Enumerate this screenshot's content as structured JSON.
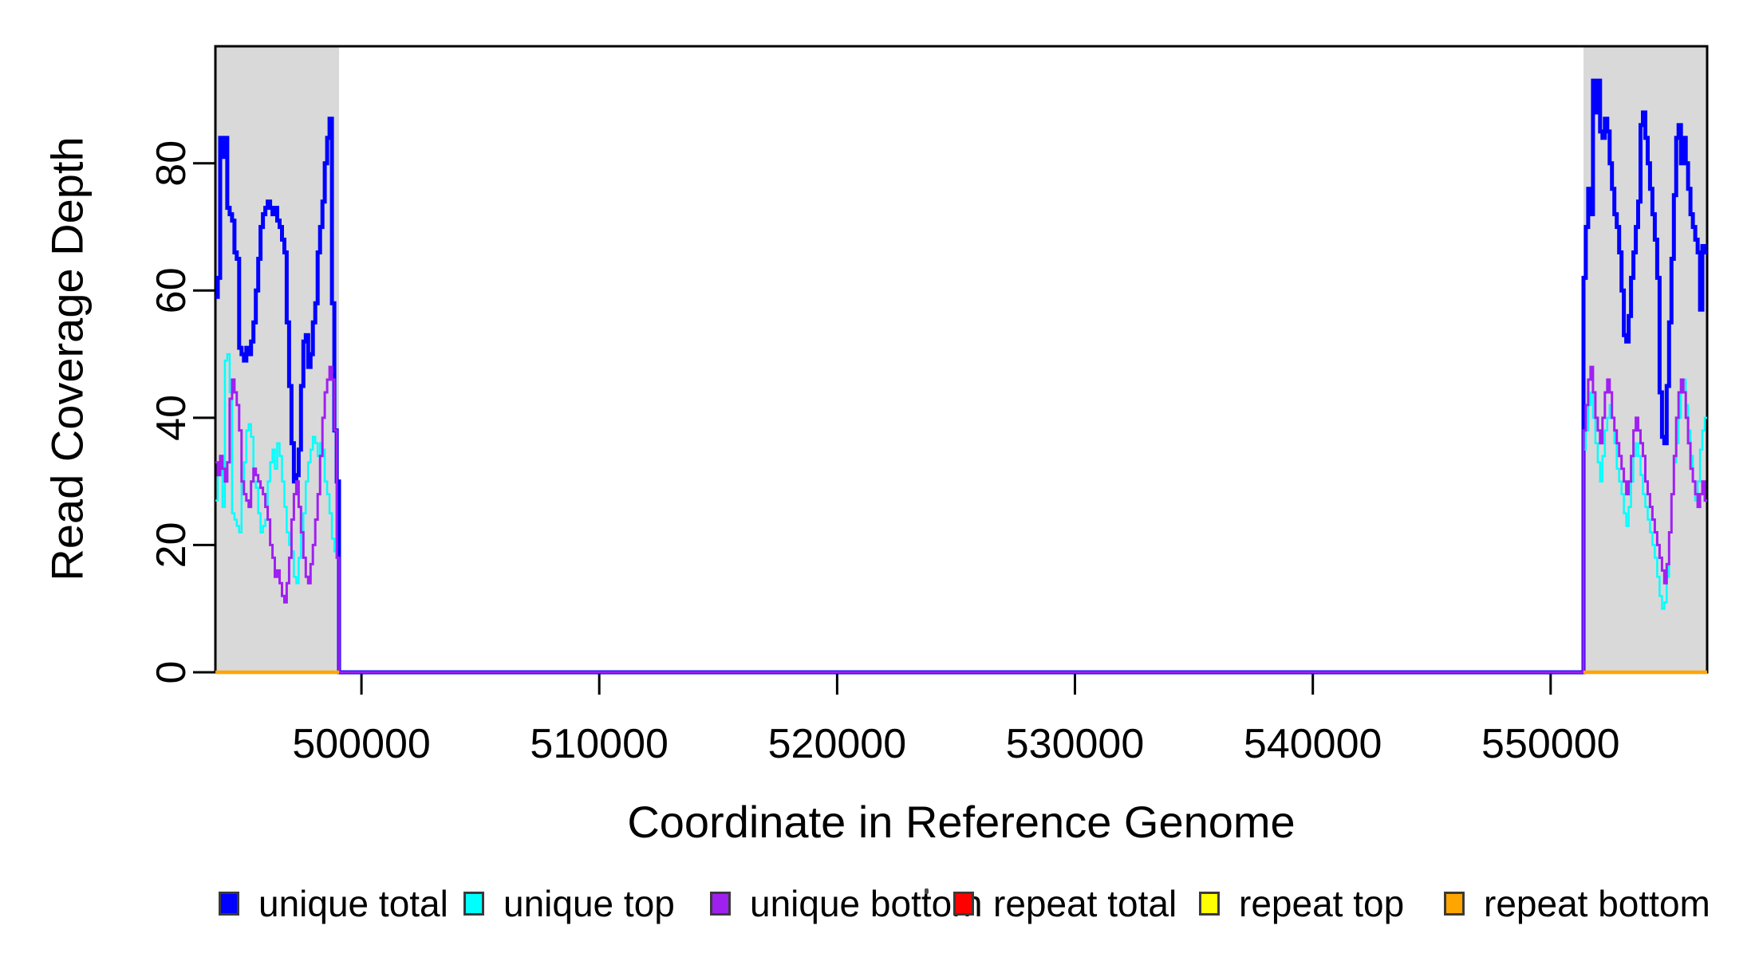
{
  "figure": {
    "background": "#ffffff"
  },
  "colors": {
    "axis": "#000000",
    "text": "#000000",
    "shaded_region": "#d9d9d9"
  },
  "legend": {
    "items": [
      {
        "label": "unique total",
        "color": "#0000ff"
      },
      {
        "label": "unique top",
        "color": "#00ffff"
      },
      {
        "label": "unique bottom",
        "color": "#a020f0"
      },
      {
        "label": "repeat total",
        "color": "#ff0000"
      },
      {
        "label": "repeat top",
        "color": "#ffff00"
      },
      {
        "label": "repeat bottom",
        "color": "#ffa500"
      }
    ]
  },
  "chart_data": {
    "type": "line",
    "subtype": "step",
    "title": "",
    "xlabel": "Coordinate in Reference Genome",
    "ylabel": "Read Coverage Depth",
    "xlim": [
      493860,
      556580
    ],
    "ylim": [
      0,
      98.4
    ],
    "xticks": [
      500000,
      510000,
      520000,
      530000,
      540000,
      550000
    ],
    "yticks": [
      0,
      20,
      40,
      60,
      80
    ],
    "grid": false,
    "legend_position": "bottom",
    "shaded_regions": [
      {
        "name": "left-data-block",
        "x0": 493860,
        "x1": 499060,
        "color": "#d9d9d9"
      },
      {
        "name": "right-data-block",
        "x0": 551380,
        "x1": 556580,
        "color": "#d9d9d9"
      }
    ],
    "series": [
      {
        "name": "unique total",
        "color": "#0000ff",
        "lw": 5,
        "segments": [
          {
            "x0": 493860,
            "dx": 100,
            "values": [
              59,
              62,
              84,
              81,
              84,
              73,
              72,
              71,
              66,
              65,
              51,
              50,
              49,
              51,
              50,
              52,
              55,
              60,
              65,
              70,
              72,
              73,
              74,
              73,
              72,
              73,
              71,
              70,
              68,
              66,
              55,
              45,
              36,
              30,
              31,
              35,
              45,
              52,
              53,
              48,
              50,
              55,
              58,
              66,
              70,
              74,
              80,
              84,
              87,
              58,
              38,
              30
            ]
          },
          {
            "x0": 499060,
            "x1": 551380,
            "const": 0
          },
          {
            "x0": 551380,
            "dx": 100,
            "values": [
              62,
              70,
              76,
              72,
              93,
              88,
              93,
              85,
              84,
              87,
              85,
              80,
              76,
              72,
              70,
              66,
              60,
              53,
              52,
              56,
              62,
              66,
              70,
              74,
              86,
              88,
              84,
              80,
              76,
              72,
              68,
              62,
              44,
              37,
              36,
              45,
              55,
              65,
              75,
              84,
              86,
              80,
              84,
              80,
              76,
              72,
              70,
              68,
              66,
              57,
              67,
              66
            ]
          }
        ]
      },
      {
        "name": "unique top",
        "color": "#00ffff",
        "lw": 2.5,
        "segments": [
          {
            "x0": 493860,
            "dx": 100,
            "values": [
              27,
              33,
              34,
              26,
              49,
              50,
              44,
              25,
              24,
              23,
              22,
              30,
              33,
              38,
              39,
              37,
              30,
              29,
              25,
              22,
              23,
              24,
              30,
              33,
              35,
              32,
              36,
              34,
              30,
              26,
              22,
              20,
              19,
              15,
              14,
              18,
              22,
              25,
              30,
              33,
              35,
              37,
              36,
              34,
              36,
              35,
              30,
              28,
              25,
              21,
              19,
              18
            ]
          },
          {
            "x0": 499060,
            "x1": 551380,
            "const": 0
          },
          {
            "x0": 551380,
            "dx": 100,
            "values": [
              35,
              38,
              42,
              44,
              40,
              36,
              33,
              30,
              34,
              38,
              40,
              42,
              40,
              36,
              32,
              30,
              28,
              25,
              23,
              26,
              30,
              34,
              36,
              34,
              31,
              28,
              26,
              24,
              22,
              20,
              18,
              15,
              12,
              10,
              11,
              15,
              22,
              28,
              33,
              36,
              40,
              44,
              46,
              42,
              38,
              34,
              30,
              27,
              30,
              35,
              38,
              40
            ]
          }
        ]
      },
      {
        "name": "unique bottom",
        "color": "#a020f0",
        "lw": 3,
        "segments": [
          {
            "x0": 493860,
            "dx": 100,
            "values": [
              33,
              31,
              34,
              32,
              30,
              33,
              43,
              46,
              44,
              42,
              38,
              30,
              28,
              27,
              26,
              30,
              32,
              31,
              30,
              29,
              28,
              26,
              24,
              20,
              18,
              15,
              16,
              14,
              12,
              11,
              14,
              18,
              24,
              28,
              30,
              26,
              22,
              18,
              15,
              14,
              17,
              20,
              24,
              28,
              34,
              40,
              44,
              46,
              48,
              46,
              38,
              18
            ]
          },
          {
            "x0": 499060,
            "x1": 551380,
            "const": 0
          },
          {
            "x0": 551380,
            "dx": 100,
            "values": [
              38,
              42,
              46,
              48,
              44,
              40,
              38,
              36,
              40,
              44,
              46,
              44,
              40,
              38,
              36,
              34,
              32,
              30,
              28,
              30,
              34,
              38,
              40,
              38,
              36,
              34,
              30,
              28,
              26,
              24,
              22,
              20,
              18,
              16,
              14,
              17,
              22,
              28,
              34,
              40,
              44,
              46,
              44,
              40,
              36,
              32,
              30,
              28,
              26,
              28,
              30,
              27
            ]
          }
        ]
      },
      {
        "name": "repeat total",
        "color": "#ff0000",
        "lw": 3,
        "segments": [
          {
            "x0": 493860,
            "x1": 499060,
            "const": 0
          },
          {
            "x0": 551380,
            "x1": 556580,
            "const": 0,
            "connect": false
          }
        ]
      },
      {
        "name": "repeat top",
        "color": "#ffff00",
        "lw": 3,
        "segments": [
          {
            "x0": 493860,
            "x1": 499060,
            "const": 0
          },
          {
            "x0": 551380,
            "x1": 556580,
            "const": 0,
            "connect": false
          }
        ]
      },
      {
        "name": "repeat bottom",
        "color": "#ffa500",
        "lw": 4.5,
        "segments": [
          {
            "x0": 493860,
            "x1": 499060,
            "const": 0
          },
          {
            "x0": 551380,
            "x1": 556580,
            "const": 0,
            "connect": false
          }
        ]
      }
    ]
  }
}
